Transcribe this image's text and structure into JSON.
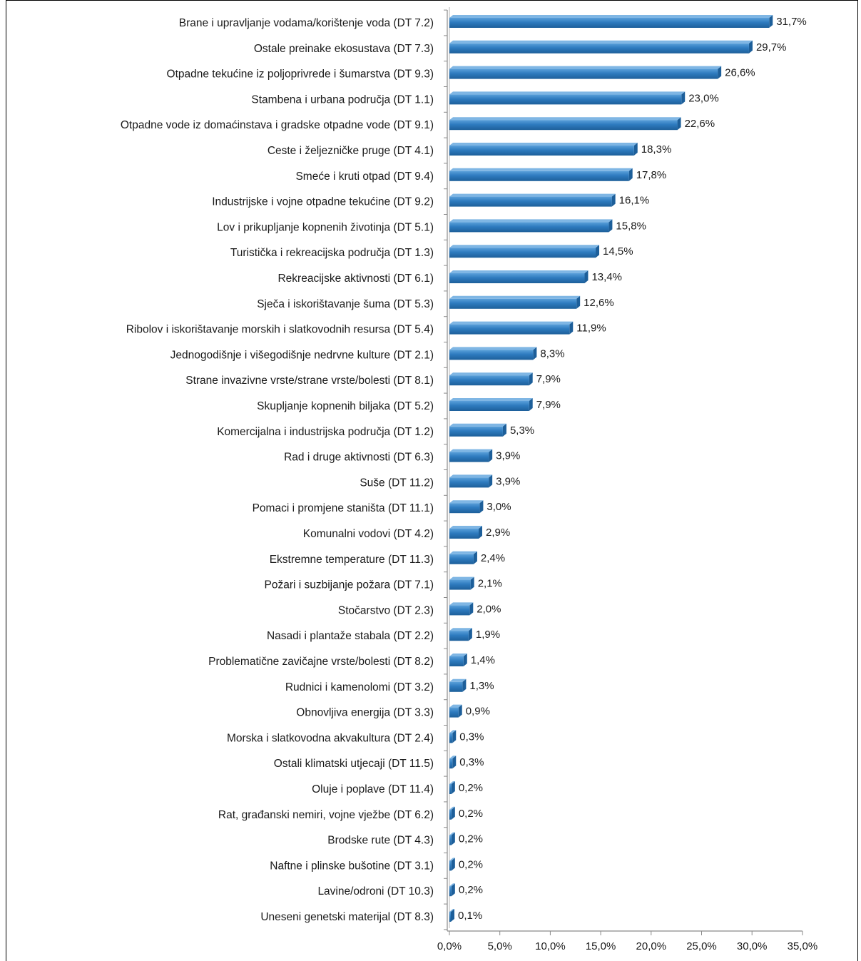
{
  "chart_data": {
    "type": "bar",
    "orientation": "horizontal",
    "title": "",
    "xlabel": "",
    "ylabel": "",
    "xlim": [
      0,
      35
    ],
    "x_ticks": [
      "0,0%",
      "5,0%",
      "10,0%",
      "15,0%",
      "20,0%",
      "25,0%",
      "30,0%",
      "35,0%"
    ],
    "grid": false,
    "legend": "none",
    "bar_color": "#2e7bbf",
    "categories": [
      "Brane i upravljanje vodama/korištenje voda (DT 7.2)",
      "Ostale preinake ekosustava (DT 7.3)",
      "Otpadne tekućine iz poljoprivrede i šumarstva (DT 9.3)",
      "Stambena i urbana područja (DT 1.1)",
      "Otpadne vode iz domaćinstava i gradske otpadne vode (DT 9.1)",
      "Ceste i željezničke pruge (DT 4.1)",
      "Smeće i kruti otpad (DT 9.4)",
      "Industrijske i vojne otpadne tekućine (DT 9.2)",
      "Lov i prikupljanje kopnenih životinja (DT 5.1)",
      "Turistička i rekreacijska područja (DT 1.3)",
      "Rekreacijske aktivnosti (DT 6.1)",
      "Sječa i iskorištavanje šuma (DT 5.3)",
      "Ribolov i iskorištavanje morskih i slatkovodnih resursa (DT 5.4)",
      "Jednogodišnje i višegodišnje nedrvne kulture (DT 2.1)",
      "Strane invazivne vrste/strane vrste/bolesti (DT 8.1)",
      "Skupljanje kopnenih biljaka (DT 5.2)",
      "Komercijalna i industrijska područja (DT 1.2)",
      "Rad i druge aktivnosti (DT 6.3)",
      "Suše (DT 11.2)",
      "Pomaci i promjene staništa (DT 11.1)",
      "Komunalni vodovi (DT 4.2)",
      "Ekstremne temperature (DT 11.3)",
      "Požari i suzbijanje požara (DT 7.1)",
      "Stočarstvo (DT 2.3)",
      "Nasadi i plantaže stabala (DT 2.2)",
      "Problematične zavičajne vrste/bolesti (DT 8.2)",
      "Rudnici i kamenolomi (DT 3.2)",
      "Obnovljiva energija (DT 3.3)",
      "Morska i slatkovodna akvakultura (DT 2.4)",
      "Ostali klimatski utjecaji (DT 11.5)",
      "Oluje i poplave (DT 11.4)",
      "Rat, građanski nemiri, vojne vježbe (DT 6.2)",
      "Brodske rute (DT 4.3)",
      "Naftne i plinske bušotine (DT 3.1)",
      "Lavine/odroni (DT 10.3)",
      "Uneseni genetski materijal (DT 8.3)"
    ],
    "values": [
      31.7,
      29.7,
      26.6,
      23.0,
      22.6,
      18.3,
      17.8,
      16.1,
      15.8,
      14.5,
      13.4,
      12.6,
      11.9,
      8.3,
      7.9,
      7.9,
      5.3,
      3.9,
      3.9,
      3.0,
      2.9,
      2.4,
      2.1,
      2.0,
      1.9,
      1.4,
      1.3,
      0.9,
      0.3,
      0.3,
      0.2,
      0.2,
      0.2,
      0.2,
      0.2,
      0.1
    ],
    "value_labels": [
      "31,7%",
      "29,7%",
      "26,6%",
      "23,0%",
      "22,6%",
      "18,3%",
      "17,8%",
      "16,1%",
      "15,8%",
      "14,5%",
      "13,4%",
      "12,6%",
      "11,9%",
      "8,3%",
      "7,9%",
      "7,9%",
      "5,3%",
      "3,9%",
      "3,9%",
      "3,0%",
      "2,9%",
      "2,4%",
      "2,1%",
      "2,0%",
      "1,9%",
      "1,4%",
      "1,3%",
      "0,9%",
      "0,3%",
      "0,3%",
      "0,2%",
      "0,2%",
      "0,2%",
      "0,2%",
      "0,2%",
      "0,1%"
    ]
  }
}
